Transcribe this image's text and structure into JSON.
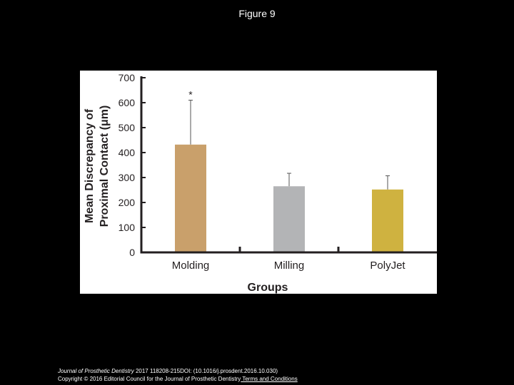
{
  "figure_title": "Figure 9",
  "footer": {
    "journal": "Journal of Prosthetic Dentistry",
    "citation": " 2017 118208-215DOI: (10.1016/j.prosdent.2016.10.030)",
    "copyright": "Copyright © 2016 Editorial Council for the Journal of Prosthetic Dentistry",
    "terms_link": " Terms and Conditions"
  },
  "chart_data": {
    "type": "bar",
    "title": "",
    "xlabel": "Groups",
    "ylabel_line1": "Mean Discrepancy of",
    "ylabel_line2": "Proximal Contact (μm)",
    "categories": [
      "Molding",
      "Milling",
      "PolyJet"
    ],
    "values": [
      432,
      265,
      252
    ],
    "error_upper": [
      610,
      317,
      307
    ],
    "colors": [
      "#c9a06b",
      "#b3b4b6",
      "#cfb240"
    ],
    "annotations": [
      "*",
      "",
      ""
    ],
    "ylim": [
      0,
      700
    ],
    "yticks": [
      0,
      100,
      200,
      300,
      400,
      500,
      600,
      700
    ],
    "grid": false
  }
}
